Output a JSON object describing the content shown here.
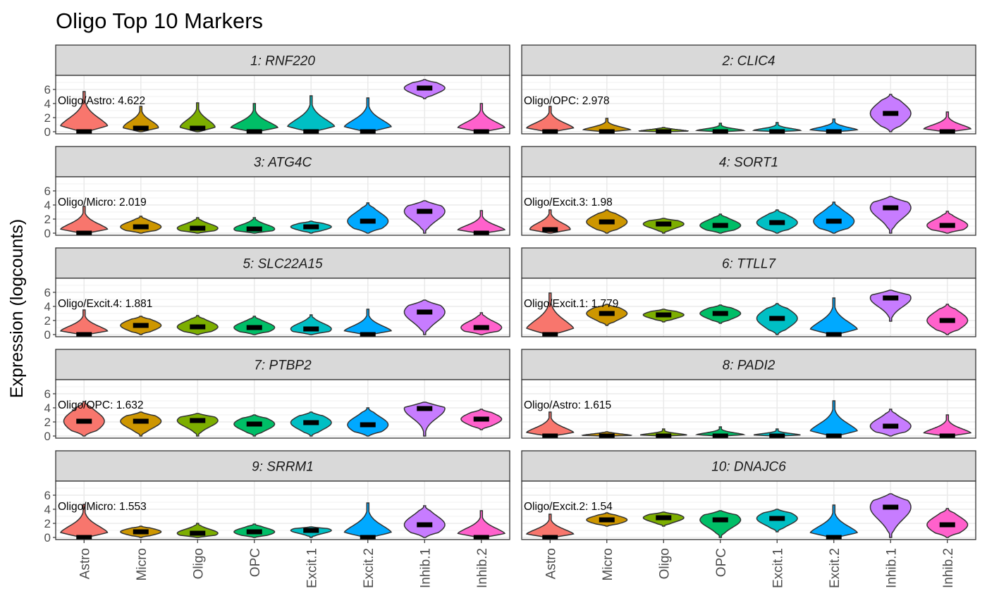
{
  "chart_data": {
    "type": "violin",
    "title": "Oligo Top 10 Markers",
    "ylabel": "Expression (logcounts)",
    "xlabel": "",
    "categories": [
      "Astro",
      "Micro",
      "Oligo",
      "OPC",
      "Excit.1",
      "Excit.2",
      "Inhib.1",
      "Inhib.2"
    ],
    "colors": [
      "#F8766D",
      "#CD9600",
      "#7CAE00",
      "#00BE67",
      "#00BFC4",
      "#00A9FF",
      "#C77CFF",
      "#FF61CC"
    ],
    "y_ticks": [
      "0",
      "2",
      "4",
      "6"
    ],
    "ylim": [
      -0.3,
      8.0
    ],
    "grid": true,
    "panels": [
      {
        "title": "1: RNF220",
        "annotation": "Oligo/Astro: 4.622",
        "medians": [
          0,
          0.5,
          0.5,
          0,
          0,
          0,
          6.2,
          0
        ],
        "maxes": [
          5.7,
          3.6,
          4.1,
          4.0,
          5.1,
          4.8,
          7.4,
          4.0
        ],
        "mins": [
          0,
          0,
          0,
          0,
          0,
          0,
          4.7,
          0
        ]
      },
      {
        "title": "2: CLIC4",
        "annotation": "Oligo/OPC: 2.978",
        "medians": [
          0,
          0,
          0,
          0,
          0,
          0,
          2.6,
          0
        ],
        "maxes": [
          3.6,
          1.9,
          0.6,
          1.2,
          1.3,
          1.8,
          5.3,
          2.8
        ],
        "mins": [
          0,
          0,
          0,
          0,
          0,
          0,
          0,
          0
        ]
      },
      {
        "title": "3: ATG4C",
        "annotation": "Oligo/Micro: 2.019",
        "medians": [
          0,
          0.9,
          0.7,
          0.6,
          0.9,
          1.7,
          3.1,
          0
        ],
        "maxes": [
          3.8,
          2.4,
          2.2,
          2.2,
          1.7,
          4.3,
          4.6,
          3.2
        ],
        "mins": [
          0,
          0,
          0,
          0,
          0,
          0,
          0,
          0
        ]
      },
      {
        "title": "4: SORT1",
        "annotation": "Oligo/Excit.3: 1.98",
        "medians": [
          0.5,
          1.6,
          1.3,
          1.1,
          1.5,
          1.7,
          3.6,
          1.1
        ],
        "maxes": [
          3.3,
          3.3,
          2.1,
          2.7,
          3.3,
          4.4,
          5.2,
          3.1
        ],
        "mins": [
          0,
          0,
          0,
          0,
          0,
          0,
          0,
          0
        ]
      },
      {
        "title": "5: SLC22A15",
        "annotation": "Oligo/Excit.4: 1.881",
        "medians": [
          0,
          1.3,
          1.1,
          1.0,
          0.8,
          0,
          3.2,
          1.0
        ],
        "maxes": [
          3.5,
          2.6,
          2.7,
          2.6,
          2.8,
          3.6,
          4.9,
          3.1
        ],
        "mins": [
          0,
          0,
          0,
          0,
          0,
          0,
          0,
          0
        ]
      },
      {
        "title": "6: TTLL7",
        "annotation": "Oligo/Excit.1: 1.779",
        "medians": [
          0,
          3.0,
          2.8,
          3.0,
          2.3,
          0,
          5.2,
          2.0
        ],
        "maxes": [
          5.9,
          4.3,
          3.6,
          4.2,
          4.4,
          5.2,
          6.3,
          4.3
        ],
        "mins": [
          0,
          1.3,
          1.8,
          1.6,
          0,
          0,
          1.9,
          0
        ]
      },
      {
        "title": "7: PTBP2",
        "annotation": "Oligo/OPC: 1.632",
        "medians": [
          2.1,
          2.1,
          2.2,
          1.7,
          1.9,
          1.6,
          3.9,
          2.4
        ],
        "maxes": [
          4.9,
          3.4,
          3.2,
          3.0,
          3.4,
          4.0,
          4.8,
          3.8
        ],
        "mins": [
          0,
          0,
          0,
          0,
          0,
          0,
          0,
          0.9
        ]
      },
      {
        "title": "8: PADI2",
        "annotation": "Oligo/Astro: 1.615",
        "medians": [
          0,
          0,
          0,
          0,
          0,
          0,
          1.4,
          0
        ],
        "maxes": [
          3.4,
          0.6,
          1.0,
          1.3,
          1.0,
          5.0,
          3.8,
          3.0
        ],
        "mins": [
          0,
          0,
          0,
          0,
          0,
          0,
          0,
          0
        ]
      },
      {
        "title": "9: SRRM1",
        "annotation": "Oligo/Micro: 1.553",
        "medians": [
          0,
          0.8,
          0.6,
          0.8,
          1.0,
          0,
          1.8,
          0
        ],
        "maxes": [
          4.7,
          1.6,
          2.0,
          1.9,
          1.5,
          4.9,
          4.5,
          3.8
        ],
        "mins": [
          0,
          0,
          0,
          0,
          0,
          0,
          0,
          0
        ]
      },
      {
        "title": "10: DNAJC6",
        "annotation": "Oligo/Excit.2: 1.54",
        "medians": [
          0,
          2.5,
          2.8,
          2.5,
          2.7,
          0,
          4.3,
          1.8
        ],
        "maxes": [
          3.3,
          3.5,
          3.6,
          3.8,
          4.0,
          4.6,
          6.2,
          4.1
        ],
        "mins": [
          0,
          1.6,
          1.6,
          0,
          0.8,
          0,
          0,
          0
        ]
      }
    ]
  }
}
